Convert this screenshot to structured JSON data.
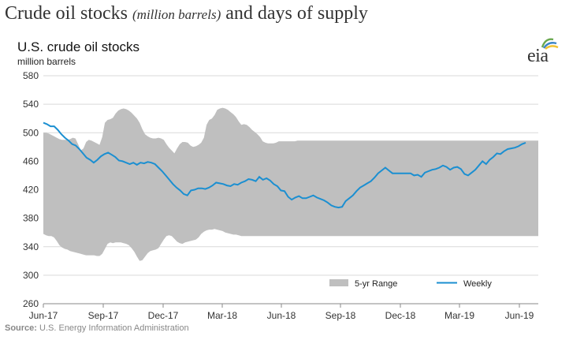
{
  "header": {
    "title_main": "Crude oil stocks",
    "title_sub": "(million barrels)",
    "title_end": "and days of supply"
  },
  "logo": {
    "text": "eia",
    "icon": "eia-logo-icon"
  },
  "source": {
    "label": "Source:",
    "text": "U.S. Energy Information Administration"
  },
  "chart_data": {
    "type": "area",
    "title": "U.S. crude oil stocks",
    "ylabel": "million barrels",
    "ylim": [
      260,
      580
    ],
    "yticks": [
      260,
      300,
      340,
      380,
      420,
      460,
      500,
      540,
      580
    ],
    "xtick_labels": [
      "Jun-17",
      "Sep-17",
      "Dec-17",
      "Mar-18",
      "Jun-18",
      "Sep-18",
      "Dec-18",
      "Mar-19",
      "Jun-19"
    ],
    "grid": true,
    "legend": "bottom-right",
    "range_series": {
      "name": "5-yr Range",
      "color": "#bfbfbf",
      "x": [
        0,
        4,
        8,
        12,
        16,
        20,
        24,
        28,
        32,
        36,
        40,
        44,
        48,
        52,
        56,
        60,
        64,
        68,
        72,
        76,
        80,
        84,
        88,
        92,
        96,
        100,
        104,
        108,
        112,
        116,
        120,
        124,
        128,
        132,
        136,
        140,
        144,
        148,
        152,
        156,
        160,
        164,
        168,
        172,
        176,
        180,
        184,
        188,
        192,
        196,
        200,
        204,
        208,
        212,
        216,
        220,
        224,
        228,
        232,
        236,
        240,
        244,
        248,
        252,
        256,
        260,
        264,
        268,
        272,
        276,
        280,
        284,
        288,
        292,
        296,
        300,
        304,
        308,
        312,
        316,
        320,
        324,
        328,
        332,
        336,
        340,
        344,
        348,
        352,
        356,
        360,
        364,
        368,
        372,
        376,
        380,
        384,
        388,
        392,
        396,
        400,
        404,
        408,
        412,
        416,
        420,
        424,
        428,
        432,
        436,
        440,
        444,
        448,
        452,
        456,
        460,
        464,
        468,
        472,
        476,
        480,
        484,
        488,
        492,
        496,
        500,
        504,
        508,
        512,
        516,
        520,
        524,
        528,
        532,
        536,
        540,
        544,
        548,
        552,
        556,
        560,
        564,
        568,
        572,
        576,
        580,
        584,
        588,
        592,
        596,
        600,
        604,
        608,
        612,
        616,
        620,
        624,
        628,
        632,
        636,
        640,
        644,
        648,
        652,
        656,
        660,
        664,
        668,
        672,
        676,
        680,
        684,
        688,
        692,
        696,
        700,
        704,
        708,
        712,
        716,
        720,
        724,
        728,
        732,
        736,
        740
      ],
      "upper": [
        500,
        500,
        499,
        497,
        495,
        493,
        491,
        490,
        490,
        490,
        491,
        493,
        492,
        484,
        475,
        478,
        487,
        490,
        489,
        487,
        485,
        483,
        494,
        514,
        518,
        519,
        521,
        527,
        531,
        533,
        534,
        533,
        531,
        528,
        524,
        520,
        514,
        505,
        498,
        495,
        493,
        492,
        492,
        493,
        492,
        490,
        484,
        479,
        475,
        471,
        478,
        484,
        487,
        487,
        486,
        482,
        480,
        481,
        483,
        486,
        493,
        511,
        518,
        520,
        525,
        532,
        534,
        535,
        534,
        532,
        529,
        526,
        522,
        516,
        511,
        512,
        511,
        508,
        504,
        501,
        498,
        494,
        488,
        486,
        485,
        485,
        485,
        486,
        488,
        488,
        488,
        488,
        488,
        488,
        488,
        489,
        489,
        489,
        489,
        489,
        489,
        489,
        489,
        489,
        489,
        489,
        489,
        489,
        489,
        489,
        489,
        489,
        489,
        489,
        489,
        489,
        489,
        489,
        489,
        489,
        489,
        489,
        489,
        489,
        489,
        489,
        489,
        489,
        489,
        489,
        489,
        489,
        489,
        489,
        489,
        489,
        489,
        489,
        489,
        489,
        489,
        489,
        489,
        489,
        489,
        489,
        489,
        489,
        489,
        489,
        489,
        489,
        489,
        489,
        489,
        489,
        489,
        489,
        489,
        489,
        489,
        489,
        489,
        489,
        489,
        489,
        489,
        489,
        489,
        489,
        489,
        489,
        489,
        489,
        489,
        489,
        489,
        489,
        489,
        489,
        489,
        489,
        489,
        489,
        489,
        489
      ],
      "lower": [
        358,
        356,
        355,
        355,
        353,
        348,
        342,
        339,
        337,
        336,
        334,
        333,
        332,
        331,
        330,
        329,
        328,
        328,
        328,
        328,
        327,
        327,
        330,
        337,
        344,
        346,
        345,
        346,
        346,
        346,
        345,
        344,
        342,
        338,
        333,
        326,
        320,
        321,
        326,
        331,
        334,
        335,
        336,
        338,
        344,
        350,
        355,
        356,
        355,
        351,
        347,
        345,
        344,
        346,
        347,
        348,
        349,
        350,
        353,
        358,
        361,
        363,
        364,
        364,
        365,
        364,
        363,
        362,
        360,
        359,
        358,
        357,
        357,
        356,
        355,
        355,
        355,
        355,
        355,
        355,
        355,
        355,
        355,
        355,
        355,
        355,
        355,
        355,
        355,
        355,
        355,
        355,
        355,
        355,
        355,
        355,
        355,
        355,
        355,
        355,
        355,
        355,
        355,
        355,
        355,
        355,
        355,
        355,
        355,
        355,
        355,
        355,
        355,
        355,
        355,
        355,
        355,
        355,
        355,
        355,
        355,
        355,
        355,
        355,
        355,
        355,
        355,
        355,
        355,
        355,
        355,
        355,
        355,
        355,
        355,
        355,
        355,
        355,
        355,
        355,
        355,
        355,
        355,
        355,
        355,
        355,
        355,
        355,
        355,
        355,
        355,
        355,
        355,
        355,
        355,
        355,
        355,
        355,
        355,
        355,
        355,
        355,
        355,
        355,
        355,
        355,
        355,
        355,
        355,
        355,
        355,
        355,
        355,
        355,
        355,
        355,
        355,
        355,
        355,
        355,
        355,
        355,
        355,
        355,
        355,
        355
      ]
    },
    "series": [
      {
        "name": "Weekly",
        "color": "#1b8fd1",
        "values": [
          514,
          512,
          509,
          509,
          504,
          498,
          493,
          489,
          484,
          482,
          477,
          471,
          465,
          462,
          458,
          462,
          467,
          470,
          472,
          469,
          466,
          461,
          460,
          458,
          456,
          458,
          455,
          458,
          457,
          459,
          458,
          456,
          451,
          446,
          440,
          434,
          428,
          423,
          419,
          414,
          412,
          419,
          420,
          422,
          422,
          421,
          423,
          426,
          430,
          429,
          428,
          426,
          425,
          428,
          427,
          430,
          432,
          435,
          434,
          432,
          438,
          434,
          436,
          433,
          428,
          425,
          419,
          418,
          410,
          406,
          409,
          411,
          408,
          408,
          410,
          412,
          409,
          407,
          405,
          402,
          398,
          396,
          395,
          396,
          404,
          408,
          412,
          418,
          423,
          426,
          429,
          432,
          437,
          443,
          447,
          451,
          447,
          443,
          443,
          443,
          443,
          443,
          443,
          440,
          441,
          438,
          444,
          446,
          448,
          449,
          451,
          454,
          452,
          448,
          451,
          452,
          449,
          442,
          440,
          444,
          448,
          454,
          460,
          456,
          462,
          466,
          471,
          470,
          474,
          477,
          478,
          479,
          481,
          484,
          486
        ]
      }
    ]
  }
}
